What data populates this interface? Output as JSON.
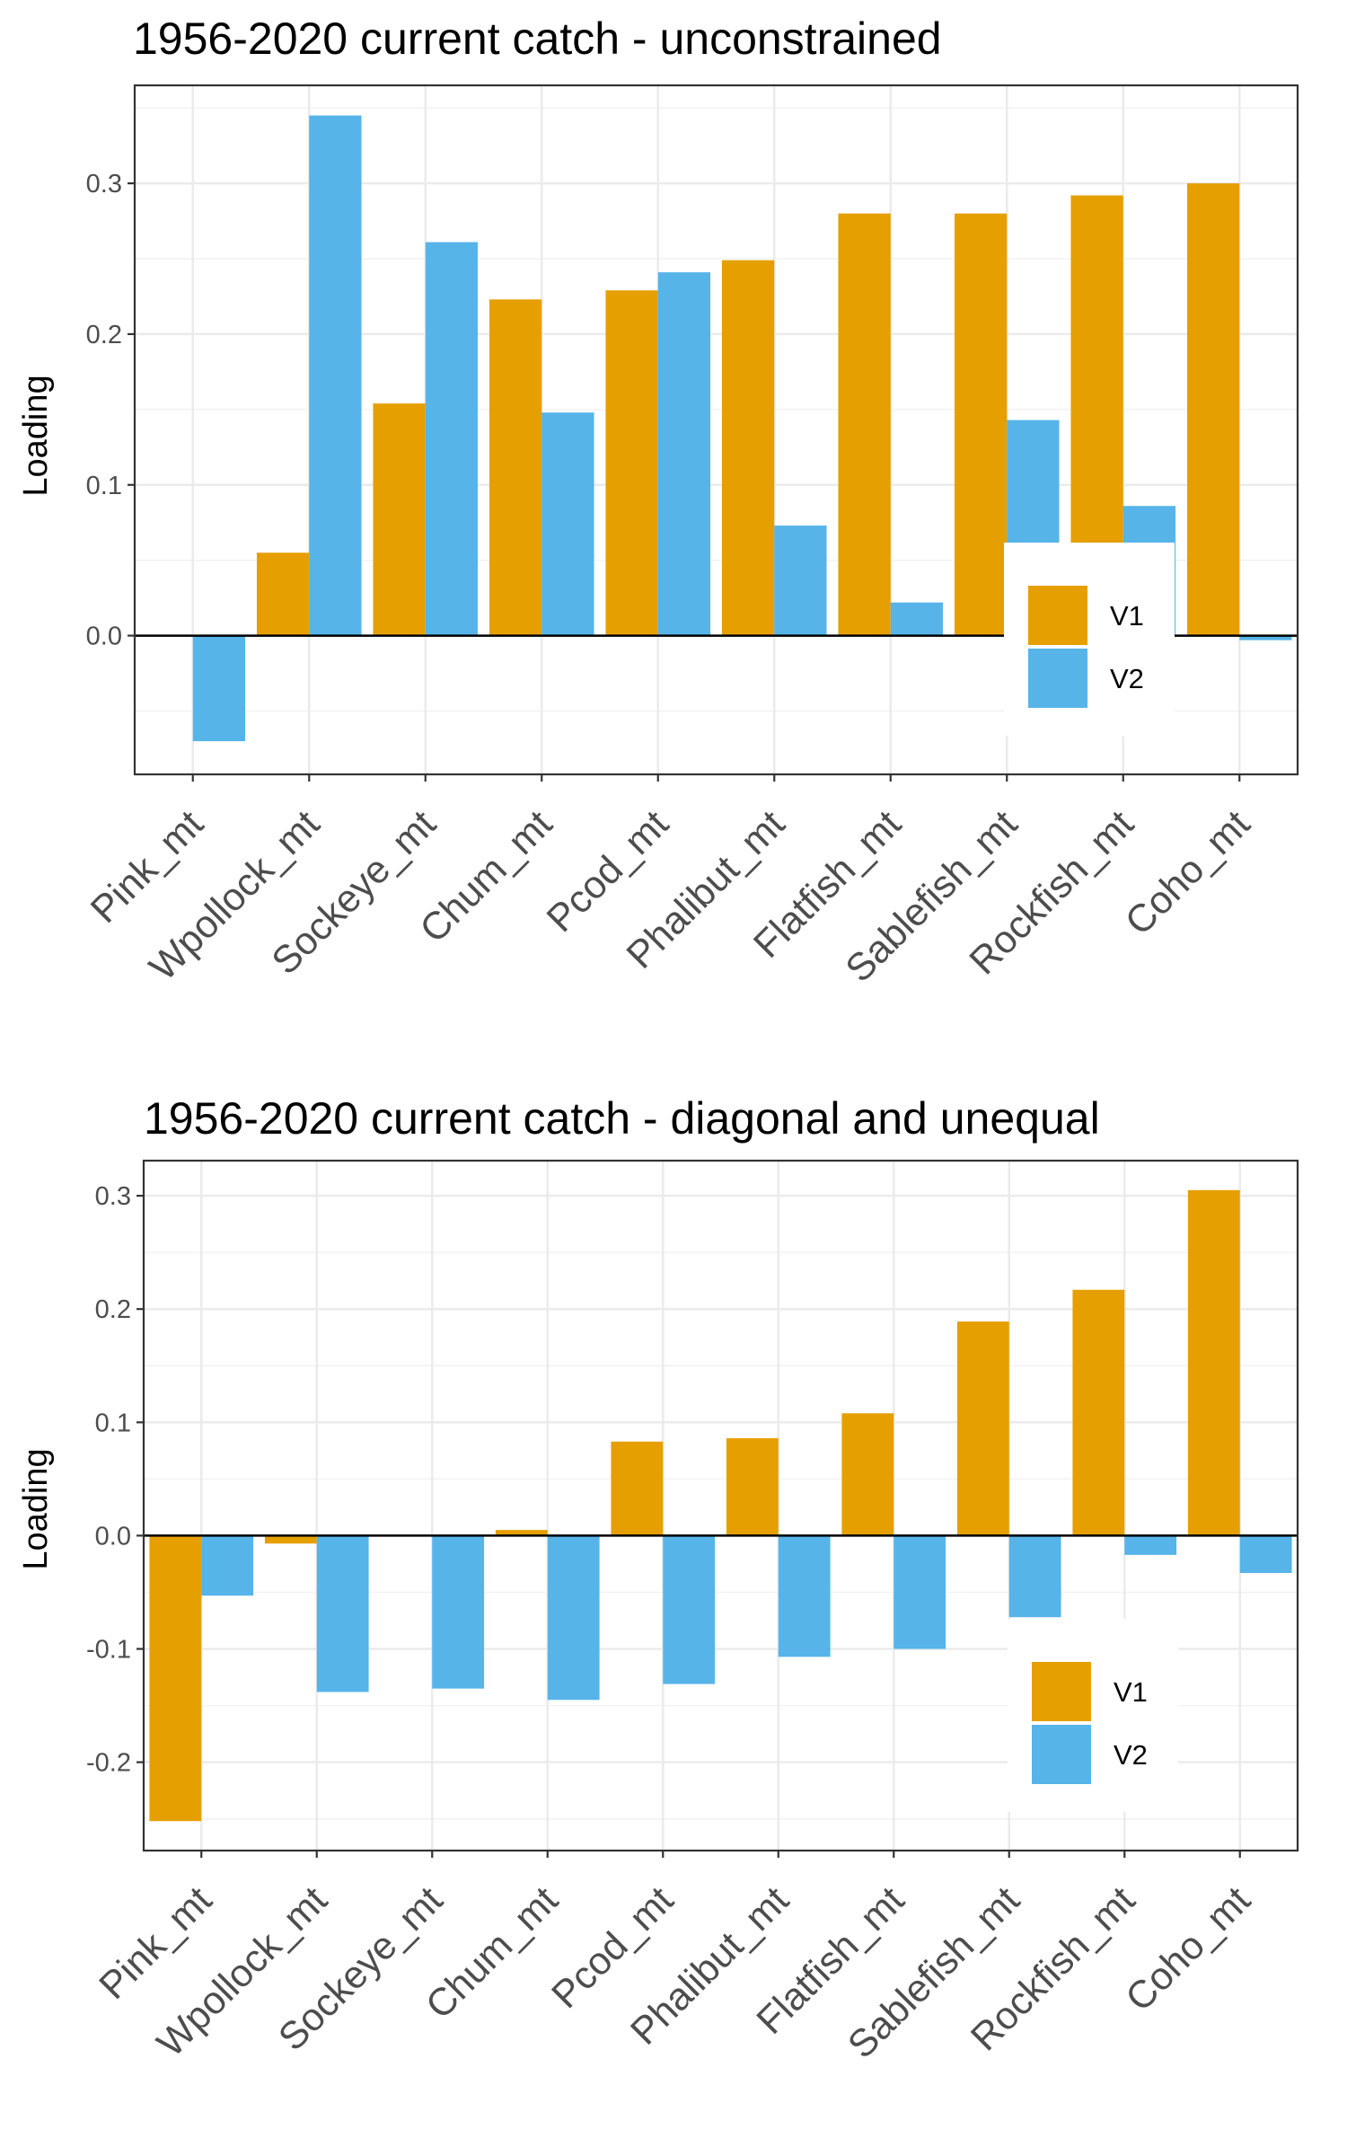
{
  "chart_data": [
    {
      "type": "bar",
      "title": "1956-2020 current catch - unconstrained",
      "xlabel": "",
      "ylabel": "Loading",
      "categories": [
        "Pink_mt",
        "Wpollock_mt",
        "Sockeye_mt",
        "Chum_mt",
        "Pcod_mt",
        "Phalibut_mt",
        "Flatfish_mt",
        "Sablefish_mt",
        "Rockfish_mt",
        "Coho_mt"
      ],
      "series": [
        {
          "name": "V1",
          "color": "#E69F00",
          "values": [
            0.0,
            0.055,
            0.154,
            0.223,
            0.229,
            0.249,
            0.28,
            0.28,
            0.292,
            0.3
          ]
        },
        {
          "name": "V2",
          "color": "#56B4E9",
          "values": [
            -0.07,
            0.345,
            0.261,
            0.148,
            0.241,
            0.073,
            0.022,
            0.143,
            0.086,
            -0.003
          ]
        }
      ],
      "yticks": [
        0.0,
        0.1,
        0.2,
        0.3
      ],
      "ytick_labels": [
        "0.0",
        "0.1",
        "0.2",
        "0.3"
      ],
      "ylim": [
        -0.092,
        0.365
      ],
      "grid": true,
      "legend": "bottom-right"
    },
    {
      "type": "bar",
      "title": "1956-2020 current catch - diagonal and unequal",
      "xlabel": "",
      "ylabel": "Loading",
      "categories": [
        "Pink_mt",
        "Wpollock_mt",
        "Sockeye_mt",
        "Chum_mt",
        "Pcod_mt",
        "Phalibut_mt",
        "Flatfish_mt",
        "Sablefish_mt",
        "Rockfish_mt",
        "Coho_mt"
      ],
      "series": [
        {
          "name": "V1",
          "color": "#E69F00",
          "values": [
            -0.252,
            -0.007,
            0.0,
            0.005,
            0.083,
            0.086,
            0.108,
            0.189,
            0.217,
            0.305
          ]
        },
        {
          "name": "V2",
          "color": "#56B4E9",
          "values": [
            -0.053,
            -0.138,
            -0.135,
            -0.145,
            -0.131,
            -0.107,
            -0.1,
            -0.072,
            -0.017,
            -0.033
          ]
        }
      ],
      "yticks": [
        -0.2,
        -0.1,
        0.0,
        0.1,
        0.2,
        0.3
      ],
      "ytick_labels": [
        "-0.2",
        "-0.1",
        "0.0",
        "0.1",
        "0.2",
        "0.3"
      ],
      "ylim": [
        -0.278,
        0.331
      ],
      "grid": true,
      "legend": "bottom-right"
    }
  ]
}
